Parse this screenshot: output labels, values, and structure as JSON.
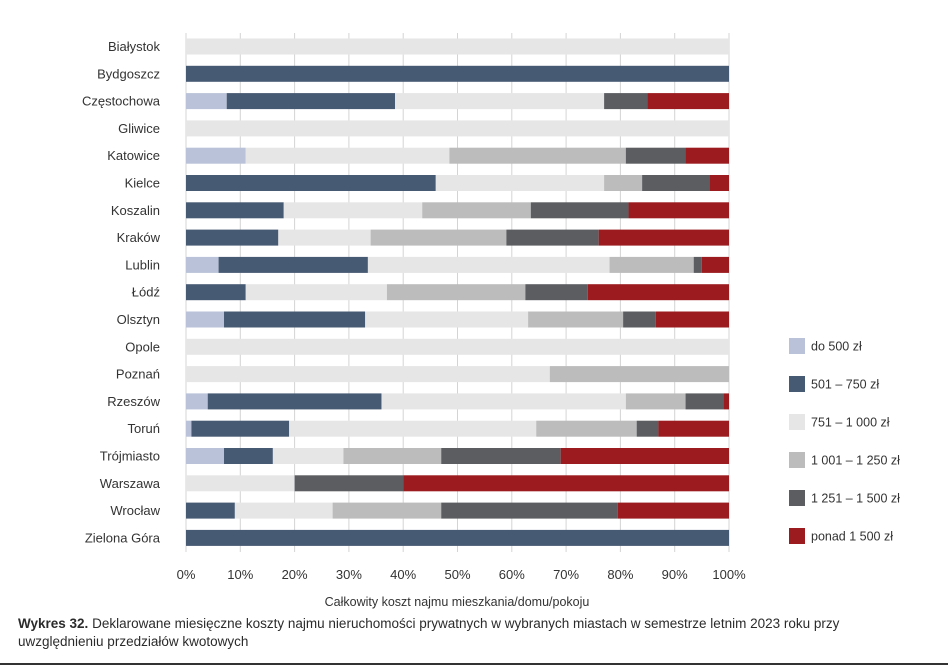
{
  "chart_data": {
    "type": "bar",
    "orientation": "horizontal",
    "stacked": "percent",
    "xlabel": "Całkowity koszt najmu mieszkania/domu/pokoju",
    "xlim": [
      0,
      100
    ],
    "x_ticks": [
      "0%",
      "10%",
      "20%",
      "30%",
      "40%",
      "50%",
      "60%",
      "70%",
      "80%",
      "90%",
      "100%"
    ],
    "grid": "vertical",
    "legend_position": "right",
    "categories": [
      "Białystok",
      "Bydgoszcz",
      "Częstochowa",
      "Gliwice",
      "Katowice",
      "Kielce",
      "Koszalin",
      "Kraków",
      "Lublin",
      "Łódź",
      "Olsztyn",
      "Opole",
      "Poznań",
      "Rzeszów",
      "Toruń",
      "Trójmiasto",
      "Warszawa",
      "Wrocław",
      "Zielona Góra"
    ],
    "series": [
      {
        "name": "do 500 zł",
        "color": "#b9c2d9",
        "values": [
          0,
          0,
          7.5,
          0,
          11,
          0,
          0,
          0,
          6,
          0,
          7,
          0,
          0,
          4,
          1,
          7,
          0,
          0,
          0
        ]
      },
      {
        "name": "501 – 750 zł",
        "color": "#475a73",
        "values": [
          0,
          100,
          31,
          0,
          0,
          46,
          18,
          17,
          27.5,
          11,
          26,
          0,
          0,
          32,
          18,
          9,
          0,
          9,
          100
        ]
      },
      {
        "name": "751 – 1 000 zł",
        "color": "#e6e6e7",
        "values": [
          100,
          0,
          38.5,
          100,
          37.5,
          31,
          25.5,
          17,
          44.5,
          26,
          30,
          100,
          67,
          45,
          45.5,
          13,
          20,
          18,
          0
        ]
      },
      {
        "name": "1 001 – 1 250 zł",
        "color": "#bcbcbc",
        "values": [
          0,
          0,
          0,
          0,
          32.5,
          7,
          20,
          25,
          15.5,
          25.5,
          17.5,
          0,
          33,
          11,
          18.5,
          18,
          0,
          20,
          0
        ]
      },
      {
        "name": "1 251 – 1 500 zł",
        "color": "#5b5d61",
        "values": [
          0,
          0,
          8,
          0,
          11,
          12.5,
          18,
          17,
          1.5,
          11.5,
          6,
          0,
          0,
          7,
          4,
          22,
          20,
          32.5,
          0
        ]
      },
      {
        "name": "ponad 1 500 zł",
        "color": "#9b1b1f",
        "values": [
          0,
          0,
          15,
          0,
          8,
          3.5,
          18.5,
          24,
          5,
          26,
          13.5,
          0,
          0,
          1,
          13,
          31,
          60,
          20.5,
          0
        ]
      }
    ]
  },
  "caption": {
    "label": "Wykres 32.",
    "text": "Deklarowane miesięczne koszty najmu nieruchomości prywatnych w wybranych miastach w semestrze letnim 2023 roku przy uwzględnieniu przedziałów kwotowych"
  }
}
